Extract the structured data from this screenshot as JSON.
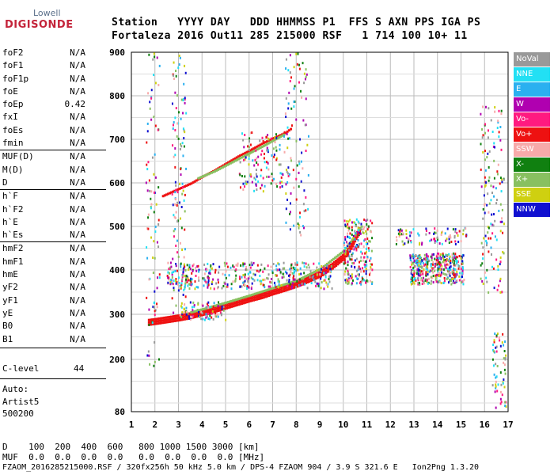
{
  "logo": {
    "top": "Lowell",
    "bottom": "DIGISONDE"
  },
  "header": {
    "row1": "Station   YYYY DAY   DDD HHMMSS P1  FFS S AXN PPS IGA PS",
    "row2": "Fortaleza 2016 Out11 285 215000 RSF   1 714 100 10+ 11"
  },
  "params": [
    {
      "label": "foF2",
      "value": "N/A"
    },
    {
      "label": "foF1",
      "value": "N/A"
    },
    {
      "label": "foF1p",
      "value": "N/A"
    },
    {
      "label": "foE",
      "value": "N/A"
    },
    {
      "label": "foEp",
      "value": "0.42"
    },
    {
      "label": "fxI",
      "value": "N/A"
    },
    {
      "label": "foEs",
      "value": "N/A"
    },
    {
      "label": "fmin",
      "value": "N/A"
    },
    {
      "label": "MUF(D)",
      "value": "N/A"
    },
    {
      "label": "M(D)",
      "value": "N/A"
    },
    {
      "label": "D",
      "value": "N/A"
    },
    {
      "label": "h`F",
      "value": "N/A"
    },
    {
      "label": "h`F2",
      "value": "N/A"
    },
    {
      "label": "h`E",
      "value": "N/A"
    },
    {
      "label": "h`Es",
      "value": "N/A"
    },
    {
      "label": "hmF2",
      "value": "N/A"
    },
    {
      "label": "hmF1",
      "value": "N/A"
    },
    {
      "label": "hmE",
      "value": "N/A"
    },
    {
      "label": "yF2",
      "value": "N/A"
    },
    {
      "label": "yF1",
      "value": "N/A"
    },
    {
      "label": "yE",
      "value": "N/A"
    },
    {
      "label": "B0",
      "value": "N/A"
    },
    {
      "label": "B1",
      "value": "N/A"
    }
  ],
  "clevel": {
    "label": "C-level",
    "value": "44"
  },
  "auto": {
    "line1": "Auto:",
    "line2": "Artist5",
    "line3": "500200"
  },
  "legend": [
    {
      "label": "NoVal",
      "color": "#999999"
    },
    {
      "label": "NNE",
      "color": "#22e0f4"
    },
    {
      "label": "E",
      "color": "#2ab0f0"
    },
    {
      "label": "W",
      "color": "#b000b0"
    },
    {
      "label": "Vo-",
      "color": "#ff1a80"
    },
    {
      "label": "Vo+",
      "color": "#ee1111"
    },
    {
      "label": "SSW",
      "color": "#f7aaaa"
    },
    {
      "label": "X-",
      "color": "#108010"
    },
    {
      "label": "X+",
      "color": "#88c060"
    },
    {
      "label": "SSE",
      "color": "#cfd010"
    },
    {
      "label": "NNW",
      "color": "#1010d0"
    }
  ],
  "footer": {
    "d_line": "D    100  200  400  600   800 1000 1500 3000 [km]",
    "muf_line": "MUF  0.0  0.0  0.0  0.0   0.0  0.0  0.0  0.0 [MHz]",
    "file_line": "FZAOM_2016285215000.RSF / 320fx256h 50 kHz 5.0 km / DPS-4 FZAOM 904 / 3.9 S 321.6 E   Ion2Png 1.3.20"
  },
  "chart_data": {
    "type": "scatter",
    "xlim": [
      1,
      17
    ],
    "ylim": [
      80,
      900
    ],
    "x_ticks": [
      "1",
      "2",
      "3",
      "4",
      "5",
      "6",
      "7",
      "8",
      "9",
      "10",
      "11",
      "12",
      "13",
      "14",
      "15",
      "16",
      "17"
    ],
    "y_ticks": [
      "80",
      "200",
      "300",
      "400",
      "500",
      "600",
      "700",
      "800",
      "900"
    ],
    "grid": true,
    "traces": [
      {
        "name": "F-trace o-mode",
        "color": "#ee1111",
        "points": [
          [
            1.7,
            283
          ],
          [
            2.0,
            285
          ],
          [
            2.5,
            289
          ],
          [
            3.0,
            293
          ],
          [
            3.5,
            298
          ],
          [
            4.0,
            305
          ],
          [
            4.5,
            312
          ],
          [
            5.0,
            320
          ],
          [
            5.5,
            328
          ],
          [
            6.0,
            336
          ],
          [
            6.5,
            343
          ],
          [
            7.0,
            352
          ],
          [
            7.5,
            360
          ],
          [
            8.0,
            369
          ],
          [
            8.5,
            380
          ],
          [
            9.0,
            392
          ],
          [
            9.5,
            410
          ],
          [
            10.0,
            432
          ],
          [
            10.3,
            455
          ],
          [
            10.5,
            478
          ],
          [
            10.7,
            495
          ]
        ]
      },
      {
        "name": "F-trace x-mode",
        "color": "#88c060",
        "points": [
          [
            3.5,
            300
          ],
          [
            4.0,
            307
          ],
          [
            5.0,
            322
          ],
          [
            6.0,
            338
          ],
          [
            7.0,
            355
          ],
          [
            8.0,
            372
          ],
          [
            9.0,
            398
          ],
          [
            10.0,
            440
          ],
          [
            10.8,
            500
          ]
        ]
      },
      {
        "name": "Multihop o-mode",
        "color": "#ee1111",
        "points": [
          [
            2.3,
            565
          ],
          [
            3.0,
            582
          ],
          [
            3.5,
            594
          ],
          [
            4.0,
            610
          ],
          [
            4.5,
            624
          ],
          [
            5.0,
            640
          ],
          [
            5.5,
            656
          ],
          [
            6.0,
            670
          ],
          [
            6.5,
            685
          ],
          [
            7.0,
            698
          ],
          [
            7.5,
            710
          ],
          [
            7.8,
            722
          ]
        ]
      },
      {
        "name": "Multihop x-mode",
        "color": "#88c060",
        "points": [
          [
            3.8,
            606
          ],
          [
            4.5,
            622
          ],
          [
            5.5,
            650
          ],
          [
            6.5,
            678
          ],
          [
            7.5,
            708
          ]
        ]
      }
    ]
  }
}
